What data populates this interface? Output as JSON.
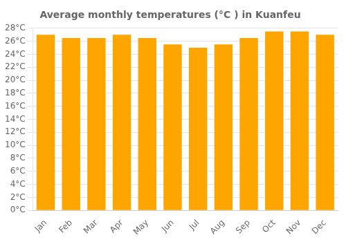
{
  "chart_data": {
    "type": "bar",
    "title": "Average monthly temperatures (°C ) in Kuanfeu",
    "categories": [
      "Jan",
      "Feb",
      "Mar",
      "Apr",
      "May",
      "Jun",
      "Jul",
      "Aug",
      "Sep",
      "Oct",
      "Nov",
      "Dec"
    ],
    "values": [
      27.0,
      26.5,
      26.5,
      27.0,
      26.5,
      25.5,
      25.0,
      25.5,
      26.5,
      27.5,
      27.5,
      27.0
    ],
    "color": "#FFA500",
    "ylim": [
      0,
      28
    ],
    "yticks": [
      {
        "value": 0,
        "label": "0°C"
      },
      {
        "value": 2,
        "label": "2°C"
      },
      {
        "value": 4,
        "label": "4°C"
      },
      {
        "value": 6,
        "label": "6°C"
      },
      {
        "value": 8,
        "label": "8°C"
      },
      {
        "value": 10,
        "label": "10°C"
      },
      {
        "value": 12,
        "label": "12°C"
      },
      {
        "value": 14,
        "label": "14°C"
      },
      {
        "value": 16,
        "label": "16°C"
      },
      {
        "value": 18,
        "label": "18°C"
      },
      {
        "value": 20,
        "label": "20°C"
      },
      {
        "value": 22,
        "label": "22°C"
      },
      {
        "value": 24,
        "label": "24°C"
      },
      {
        "value": 26,
        "label": "26°C"
      },
      {
        "value": 28,
        "label": "28°C"
      }
    ],
    "grid": true
  }
}
